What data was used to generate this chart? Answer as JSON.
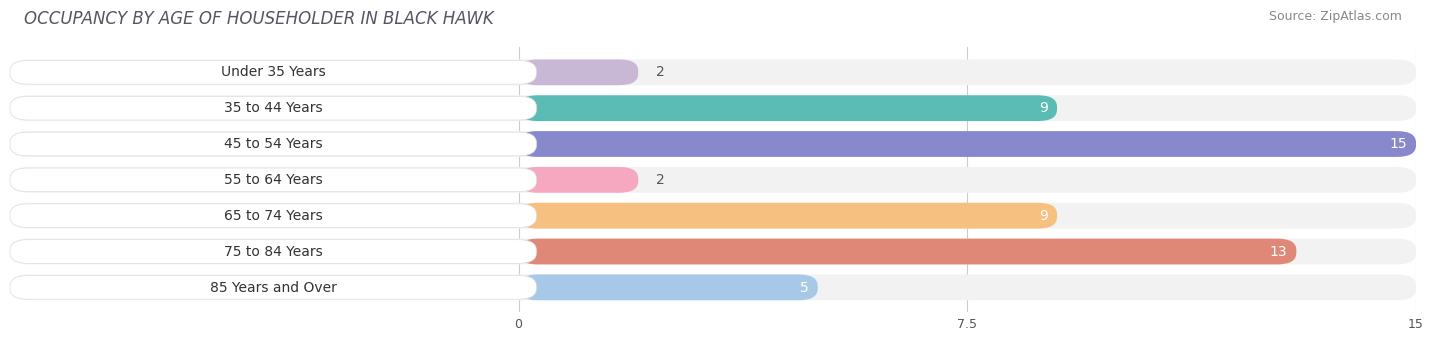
{
  "title": "OCCUPANCY BY AGE OF HOUSEHOLDER IN BLACK HAWK",
  "source": "Source: ZipAtlas.com",
  "categories": [
    "Under 35 Years",
    "35 to 44 Years",
    "45 to 54 Years",
    "55 to 64 Years",
    "65 to 74 Years",
    "75 to 84 Years",
    "85 Years and Over"
  ],
  "values": [
    2,
    9,
    15,
    2,
    9,
    13,
    5
  ],
  "bar_colors": [
    "#c8b8d5",
    "#5bbcb5",
    "#8888cc",
    "#f5a8c0",
    "#f5c080",
    "#e08878",
    "#a8c8e8"
  ],
  "bar_bg_color": "#f2f2f2",
  "xlim": [
    0,
    15
  ],
  "xticks": [
    0,
    7.5,
    15
  ],
  "title_fontsize": 12,
  "source_fontsize": 9,
  "label_fontsize": 10,
  "value_color_inside": "#ffffff",
  "value_color_outside": "#555555",
  "background_color": "#ffffff",
  "grid_color": "#cccccc"
}
